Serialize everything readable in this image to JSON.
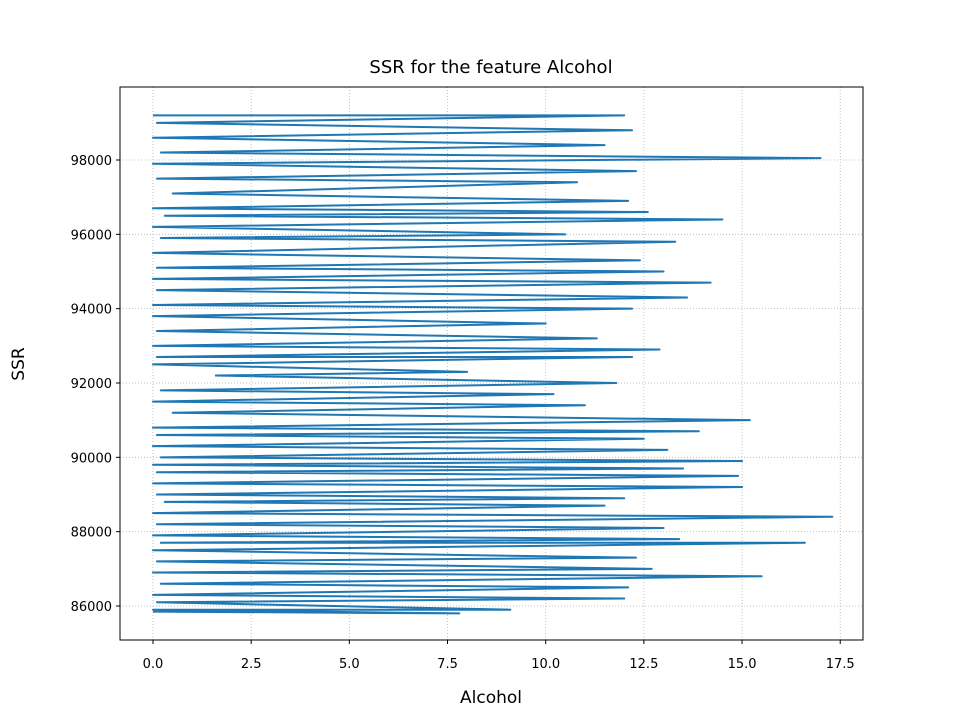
{
  "chart_data": {
    "type": "line",
    "title": "SSR for the feature Alcohol",
    "x_label": "Alcohol",
    "y_label": "SSR",
    "color": "#1f77b4",
    "grid": true,
    "xlim": [
      -0.84,
      18.08
    ],
    "ylim": [
      85085,
      99964
    ],
    "xticks": [
      {
        "value": 0,
        "label": "0.0"
      },
      2.5,
      {
        "value": 5,
        "label": "5.0"
      },
      7.5,
      {
        "value": 10,
        "label": "10.0"
      },
      12.5,
      {
        "value": 15,
        "label": "15.0"
      },
      17.5
    ],
    "yticks": [
      86000,
      88000,
      90000,
      92000,
      94000,
      96000,
      98000
    ],
    "x": [
      0.0,
      12.0,
      0.1,
      12.2,
      0.0,
      11.5,
      0.2,
      17.0,
      0.0,
      12.3,
      0.1,
      10.8,
      0.5,
      12.1,
      0.0,
      12.6,
      0.3,
      14.5,
      0.0,
      10.5,
      0.2,
      13.3,
      0.0,
      12.4,
      0.1,
      13.0,
      0.0,
      14.2,
      0.1,
      13.6,
      0.0,
      12.2,
      0.0,
      10.0,
      0.1,
      11.3,
      0.0,
      12.9,
      0.1,
      12.2,
      0.0,
      8.0,
      1.6,
      11.8,
      0.2,
      10.2,
      0.0,
      11.0,
      0.5,
      15.2,
      0.0,
      13.9,
      0.1,
      12.5,
      0.0,
      13.1,
      0.2,
      15.0,
      0.0,
      13.5,
      0.1,
      14.9,
      0.0,
      15.0,
      0.1,
      12.0,
      0.3,
      11.5,
      0.0,
      17.3,
      0.1,
      13.0,
      0.0,
      13.4,
      0.2,
      16.6,
      0.0,
      12.3,
      0.1,
      12.7,
      0.0,
      15.5,
      0.2,
      12.1,
      0.0,
      12.0,
      0.1,
      9.1,
      0.0,
      7.8,
      0.0
    ],
    "values": [
      99200,
      99200,
      99000,
      98800,
      98600,
      98400,
      98200,
      98050,
      97900,
      97700,
      97500,
      97400,
      97100,
      96900,
      96700,
      96600,
      96500,
      96400,
      96200,
      96000,
      95900,
      95800,
      95500,
      95300,
      95100,
      95000,
      94800,
      94700,
      94500,
      94300,
      94100,
      94000,
      93800,
      93600,
      93400,
      93200,
      93000,
      92900,
      92700,
      92700,
      92500,
      92300,
      92200,
      92000,
      91800,
      91700,
      91500,
      91400,
      91200,
      91000,
      90800,
      90700,
      90600,
      90500,
      90300,
      90200,
      90000,
      89900,
      89800,
      89700,
      89600,
      89500,
      89300,
      89200,
      89000,
      88900,
      88800,
      88700,
      88500,
      88400,
      88200,
      88100,
      87900,
      87800,
      87700,
      87700,
      87500,
      87300,
      87200,
      87000,
      86900,
      86800,
      86600,
      86500,
      86300,
      86200,
      86100,
      85900,
      85900,
      85800,
      85850
    ]
  }
}
